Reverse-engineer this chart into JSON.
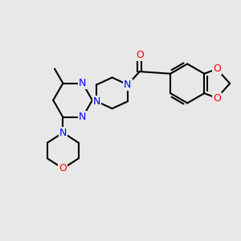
{
  "background_color": "#e8e8e8",
  "N_color": "#0000ff",
  "O_color": "#ff0000",
  "C_color": "#000000",
  "bond_color": "#000000",
  "bond_width": 1.5,
  "font_size_atom": 9,
  "fig_width": 3.0,
  "fig_height": 3.0,
  "dpi": 100,
  "xlim": [
    0,
    10
  ],
  "ylim": [
    0,
    10
  ]
}
